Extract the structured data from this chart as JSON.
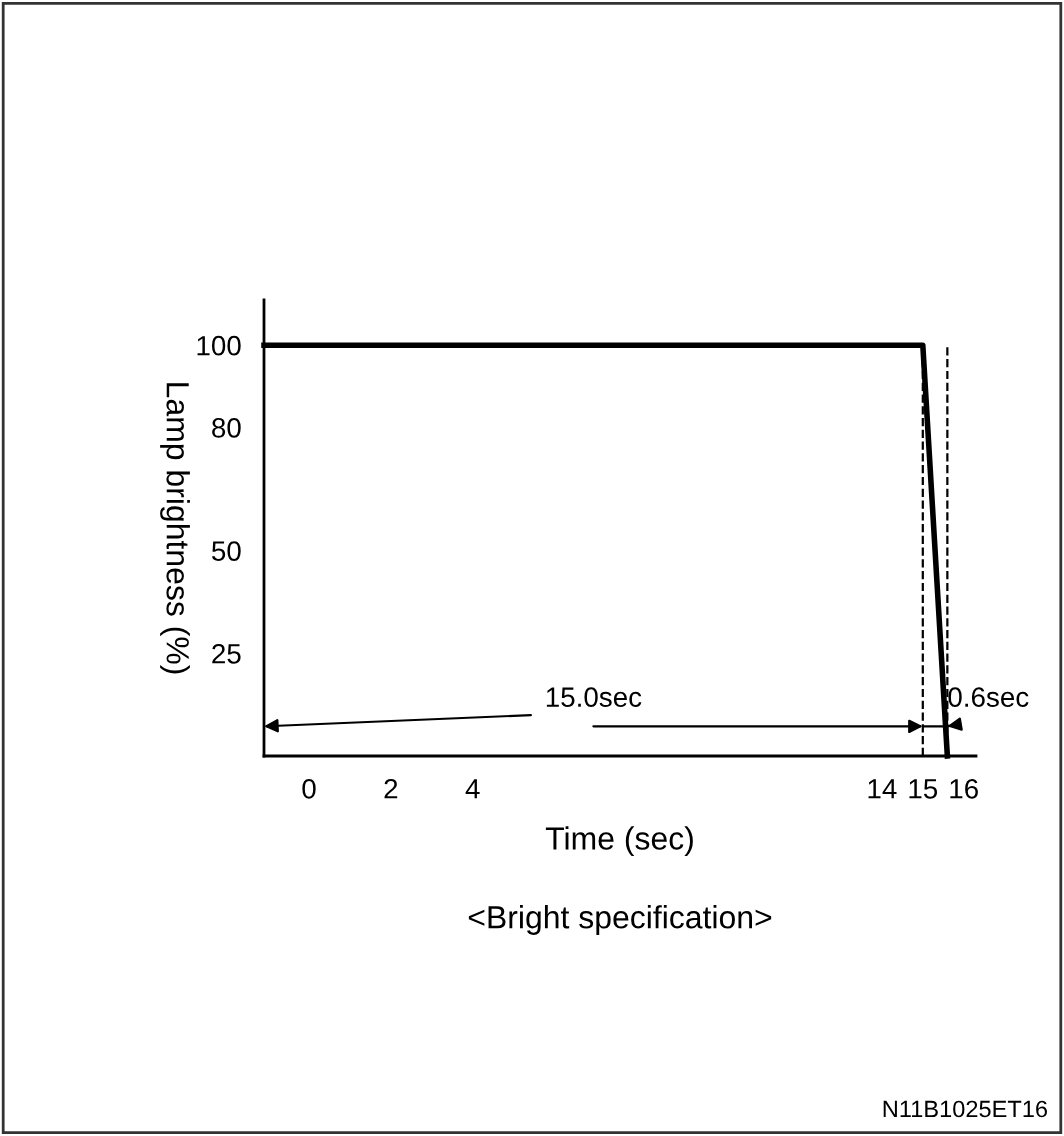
{
  "chart_data": {
    "type": "line",
    "xlabel": "Time (sec)",
    "ylabel": "Lamp brightness (%)",
    "x": [
      -1.1,
      15,
      15.6
    ],
    "series": [
      {
        "color": "#000000",
        "values": [
          100,
          100,
          0
        ]
      }
    ],
    "xlim": [
      -1.1,
      16.3
    ],
    "xticks": [
      0,
      2,
      4,
      14,
      15,
      16
    ],
    "ylim": [
      0,
      111
    ],
    "yticks": [
      25,
      50,
      80,
      100
    ],
    "ref_lines": [
      {
        "axis": "x",
        "value": 15,
        "color": "#000000",
        "line_style": "dashed"
      },
      {
        "axis": "x",
        "value": 15.6,
        "color": "#000000",
        "line_style": "dashed"
      }
    ],
    "annotations": [
      "15.0sec",
      "0.6sec",
      "<Bright specification>",
      "N11B1025ET16"
    ],
    "grid": false,
    "legend": false,
    "marker": "none",
    "line_style": "solid"
  }
}
